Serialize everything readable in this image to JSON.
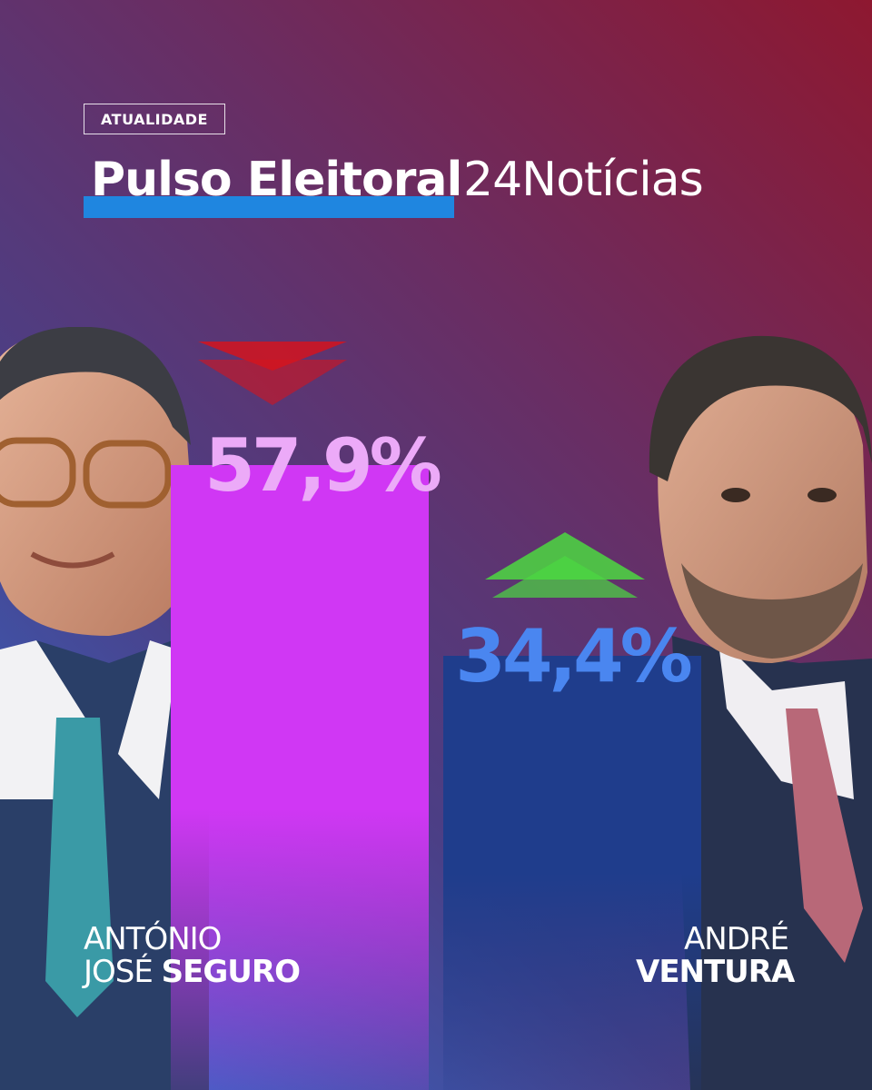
{
  "header": {
    "tag": "ATUALIDADE",
    "title_bold": "Pulso Eleitoral",
    "title_light": "24Notícias"
  },
  "colors": {
    "seguro_bar": "#d037f4",
    "seguro_label": "#ecaaf8",
    "ventura_bar": "#1f3d8c",
    "ventura_label": "#4a86f0",
    "down_arrow": "#d4141e",
    "up_arrow": "#4cd841"
  },
  "chart_data": {
    "type": "bar",
    "categories": [
      "ANTÓNIO JOSÉ SEGURO",
      "ANDRÉ VENTURA"
    ],
    "values": [
      57.9,
      34.4
    ],
    "labels": [
      "57,9%",
      "34,4%"
    ],
    "trend": [
      "down",
      "up"
    ],
    "ylim": [
      0,
      80
    ]
  },
  "candidates": [
    {
      "first": "ANTÓNIO",
      "middle": "JOSÉ",
      "last": "SEGURO",
      "icon": "portrait-icon"
    },
    {
      "first": "ANDRÉ",
      "last": "VENTURA",
      "icon": "portrait-icon"
    }
  ]
}
